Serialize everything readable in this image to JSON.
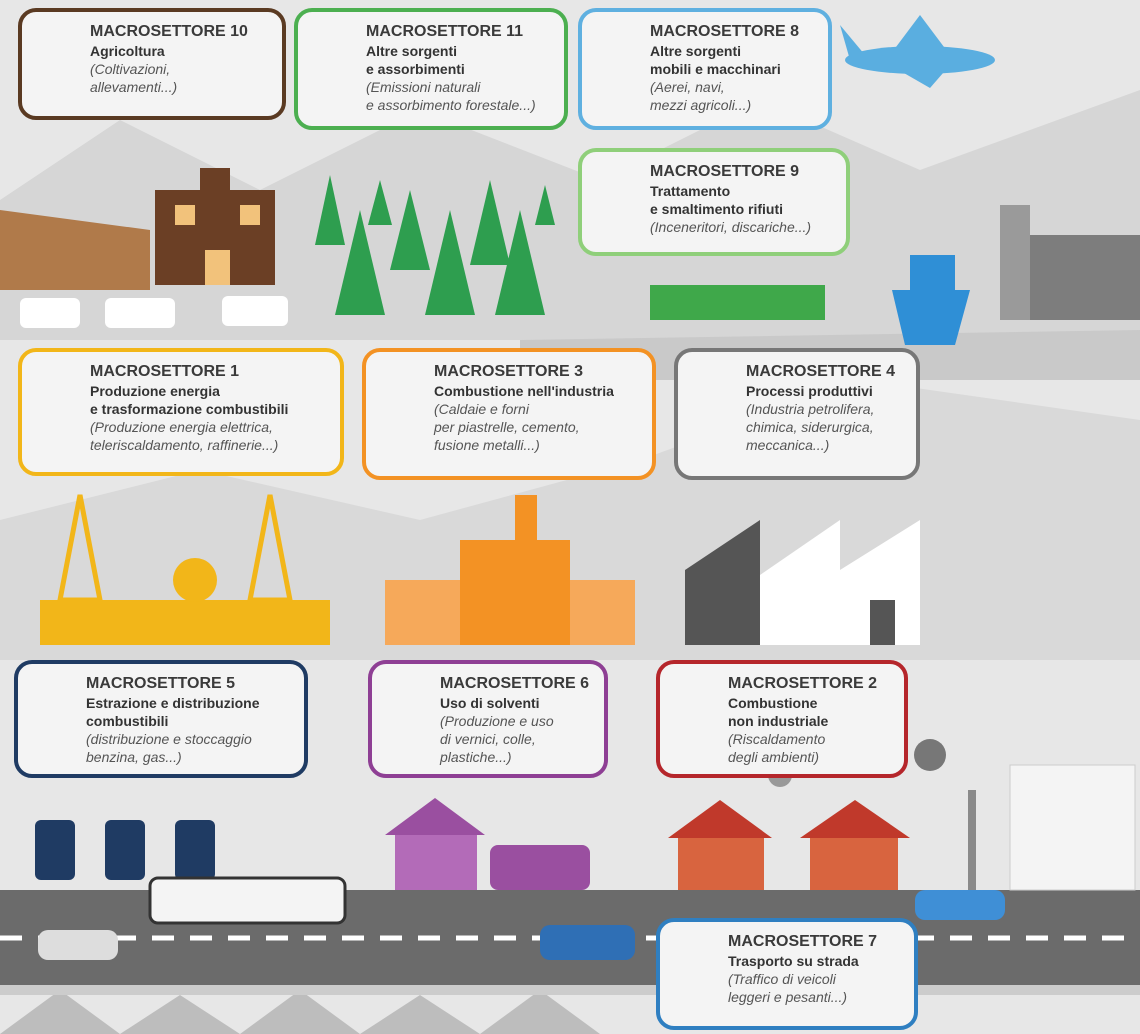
{
  "sectors": [
    {
      "title": "MACROSETTORE 10",
      "name": [
        "Agricoltura"
      ],
      "detail": [
        "(Coltivazioni,",
        "allevamenti...)"
      ]
    },
    {
      "title": "MACROSETTORE 11",
      "name": [
        "Altre sorgenti",
        "e assorbimenti"
      ],
      "detail": [
        "(Emissioni naturali",
        "e assorbimento forestale...)"
      ]
    },
    {
      "title": "MACROSETTORE 8",
      "name": [
        "Altre sorgenti",
        "mobili e macchinari"
      ],
      "detail": [
        "(Aerei, navi,",
        "mezzi agricoli...)"
      ]
    },
    {
      "title": "MACROSETTORE 9",
      "name": [
        "Trattamento",
        "e smaltimento rifiuti"
      ],
      "detail": [
        "(Inceneritori, discariche...)"
      ]
    },
    {
      "title": "MACROSETTORE 1",
      "name": [
        "Produzione energia",
        "e trasformazione combustibili"
      ],
      "detail": [
        "(Produzione energia elettrica,",
        "teleriscaldamento, raffinerie...)"
      ]
    },
    {
      "title": "MACROSETTORE 3",
      "name": [
        "Combustione nell'industria"
      ],
      "detail": [
        "(Caldaie e forni",
        "per piastrelle, cemento,",
        "fusione metalli...)"
      ]
    },
    {
      "title": "MACROSETTORE 4",
      "name": [
        "Processi produttivi"
      ],
      "detail": [
        "(Industria petrolifera,",
        "chimica, siderurgica,",
        "meccanica...)"
      ]
    },
    {
      "title": "MACROSETTORE 5",
      "name": [
        "Estrazione e distribuzione",
        "combustibili"
      ],
      "detail": [
        "(distribuzione e stoccaggio",
        "benzina, gas...)"
      ]
    },
    {
      "title": "MACROSETTORE 6",
      "name": [
        "Uso di solventi"
      ],
      "detail": [
        "(Produzione e uso",
        "di vernici, colle,",
        "plastiche...)"
      ]
    },
    {
      "title": "MACROSETTORE 2",
      "name": [
        "Combustione",
        "non industriale"
      ],
      "detail": [
        "(Riscaldamento",
        "degli ambienti)"
      ]
    },
    {
      "title": "MACROSETTORE 7",
      "name": [
        "Trasporto su strada"
      ],
      "detail": [
        "(Traffico di veicoli",
        "leggeri e pesanti...)"
      ]
    }
  ]
}
